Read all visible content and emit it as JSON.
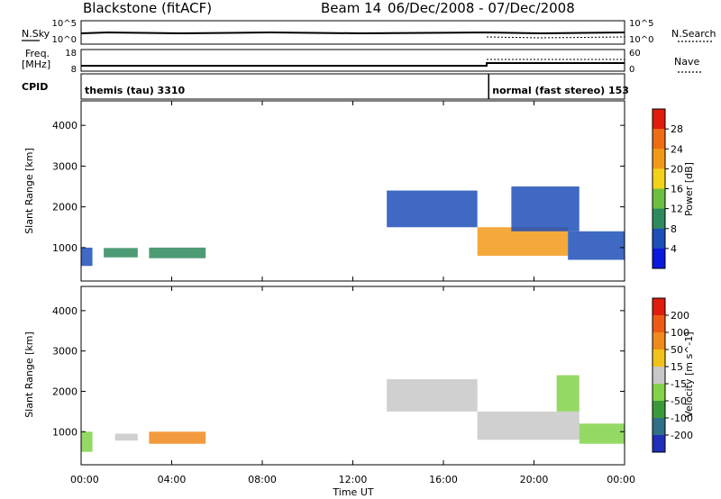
{
  "header": {
    "station": "Blackstone (fitACF)",
    "beam": "Beam 14",
    "date_range": "06/Dec/2008 - 07/Dec/2008"
  },
  "sky_panel": {
    "label": "N.Sky",
    "right_label": "N.Search",
    "left_ticks": [
      "10^5",
      "10^0"
    ],
    "right_ticks": [
      "10^5",
      "10^0"
    ]
  },
  "freq_panel": {
    "label_top": "Freq.",
    "label_bottom": "[MHz]",
    "right_label": "Nave",
    "left_ticks": [
      "18",
      "8"
    ],
    "right_ticks": [
      "60",
      "0"
    ]
  },
  "cpid_panel": {
    "label": "CPID",
    "segments": [
      {
        "text": "themis (tau) 3310",
        "start_hour": 0
      },
      {
        "text": "normal (fast stereo) 153",
        "start_hour": 18
      }
    ]
  },
  "chart_data": [
    {
      "type": "heatmap",
      "name": "power",
      "ylabel": "Slant Range [km]",
      "yticks": [
        1000,
        2000,
        3000,
        4000
      ],
      "ylim": [
        180,
        4600
      ],
      "colorbar": {
        "label": "Power [dB]",
        "ticks": [
          "4",
          "8",
          "12",
          "16",
          "20",
          "24",
          "28"
        ],
        "colors": [
          "#0a1adc",
          "#1d4fb8",
          "#2e8a5c",
          "#6cc040",
          "#f3d21a",
          "#f29a18",
          "#ee6d14",
          "#e01c0e"
        ]
      },
      "regions": [
        {
          "x0": 0.0,
          "x1": 0.5,
          "y0": 550,
          "y1": 1000,
          "color": "#1d4fb8"
        },
        {
          "x0": 1.0,
          "x1": 2.5,
          "y0": 760,
          "y1": 990,
          "color": "#2e8a5c"
        },
        {
          "x0": 3.0,
          "x1": 5.5,
          "y0": 740,
          "y1": 1000,
          "color": "#2e8a5c"
        },
        {
          "x0": 13.5,
          "x1": 17.5,
          "y0": 1500,
          "y1": 2400,
          "color": "#1d4fb8"
        },
        {
          "x0": 17.5,
          "x1": 21.5,
          "y0": 800,
          "y1": 1500,
          "color": "#f29a18"
        },
        {
          "x0": 19.0,
          "x1": 22.0,
          "y0": 1400,
          "y1": 2500,
          "color": "#1d4fb8"
        },
        {
          "x0": 21.5,
          "x1": 24.0,
          "y0": 700,
          "y1": 1400,
          "color": "#1d4fb8"
        }
      ]
    },
    {
      "type": "heatmap",
      "name": "velocity",
      "ylabel": "Slant Range [km]",
      "yticks": [
        1000,
        2000,
        3000,
        4000
      ],
      "ylim": [
        180,
        4600
      ],
      "colorbar": {
        "label": "Velocity [m s^-1]",
        "ticks": [
          "200",
          "100",
          "50",
          "15",
          "-15",
          "-50",
          "-100",
          "-200"
        ],
        "colors": [
          "#1f2fb8",
          "#2f6f88",
          "#3a9a3a",
          "#82d24a",
          "#c8c8c8",
          "#f3c21a",
          "#f08a1c",
          "#ee5a14",
          "#e01c0e"
        ]
      },
      "regions": [
        {
          "x0": 0.0,
          "x1": 0.5,
          "y0": 500,
          "y1": 1000,
          "color": "#82d24a"
        },
        {
          "x0": 1.5,
          "x1": 2.5,
          "y0": 780,
          "y1": 950,
          "color": "#c8c8c8"
        },
        {
          "x0": 3.0,
          "x1": 5.5,
          "y0": 700,
          "y1": 1000,
          "color": "#f08a1c"
        },
        {
          "x0": 13.5,
          "x1": 17.5,
          "y0": 1500,
          "y1": 2300,
          "color": "#c8c8c8"
        },
        {
          "x0": 17.5,
          "x1": 22.0,
          "y0": 800,
          "y1": 1500,
          "color": "#c8c8c8"
        },
        {
          "x0": 21.0,
          "x1": 22.0,
          "y0": 1500,
          "y1": 2400,
          "color": "#82d24a"
        },
        {
          "x0": 22.0,
          "x1": 24.0,
          "y0": 700,
          "y1": 1200,
          "color": "#82d24a"
        }
      ]
    }
  ],
  "xaxis": {
    "label": "Time UT",
    "ticks": [
      "00:00",
      "04:00",
      "08:00",
      "12:00",
      "16:00",
      "20:00",
      "00:00"
    ],
    "xlim": [
      0,
      24
    ]
  }
}
